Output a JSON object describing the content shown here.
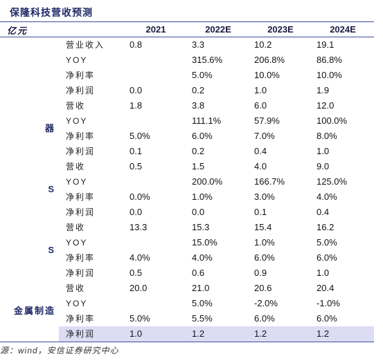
{
  "title": "保隆科技营收预测",
  "source": "源：wind，安信证券研究中心",
  "table": {
    "header": {
      "unit": "亿元",
      "years": [
        "2021",
        "2022E",
        "2023E",
        "2024E"
      ]
    },
    "groups": [
      {
        "label": null,
        "rows": [
          {
            "metric": "营业收入",
            "values": [
              "0.8",
              "3.3",
              "10.2",
              "19.1"
            ]
          },
          {
            "metric": "YOY",
            "values": [
              null,
              "315.6%",
              "206.8%",
              "86.8%"
            ]
          },
          {
            "metric": "净利率",
            "values": [
              null,
              "5.0%",
              "10.0%",
              "10.0%"
            ]
          },
          {
            "metric": "净利润",
            "values": [
              "0.0",
              "0.2",
              "1.0",
              "1.9"
            ]
          }
        ]
      },
      {
        "label": "器",
        "rows": [
          {
            "metric": "营收",
            "values": [
              "1.8",
              "3.8",
              "6.0",
              "12.0"
            ]
          },
          {
            "metric": "YOY",
            "values": [
              null,
              "111.1%",
              "57.9%",
              "100.0%"
            ]
          },
          {
            "metric": "净利率",
            "values": [
              "5.0%",
              "6.0%",
              "7.0%",
              "8.0%"
            ]
          },
          {
            "metric": "净利润",
            "values": [
              "0.1",
              "0.2",
              "0.4",
              "1.0"
            ]
          }
        ]
      },
      {
        "label": "S",
        "rows": [
          {
            "metric": "营收",
            "values": [
              "0.5",
              "1.5",
              "4.0",
              "9.0"
            ]
          },
          {
            "metric": "YOY",
            "values": [
              null,
              "200.0%",
              "166.7%",
              "125.0%"
            ]
          },
          {
            "metric": "净利率",
            "values": [
              "0.0%",
              "1.0%",
              "3.0%",
              "4.0%"
            ]
          },
          {
            "metric": "净利润",
            "values": [
              "0.0",
              "0.0",
              "0.1",
              "0.4"
            ]
          }
        ]
      },
      {
        "label": "S",
        "rows": [
          {
            "metric": "营收",
            "values": [
              "13.3",
              "15.3",
              "15.4",
              "16.2"
            ]
          },
          {
            "metric": "YOY",
            "values": [
              null,
              "15.0%",
              "1.0%",
              "5.0%"
            ]
          },
          {
            "metric": "净利率",
            "values": [
              "4.0%",
              "4.0%",
              "6.0%",
              "6.0%"
            ]
          },
          {
            "metric": "净利润",
            "values": [
              "0.5",
              "0.6",
              "0.9",
              "1.0"
            ]
          }
        ]
      },
      {
        "label": "金属制造",
        "rows": [
          {
            "metric": "营收",
            "values": [
              "20.0",
              "21.0",
              "20.6",
              "20.4"
            ]
          },
          {
            "metric": "YOY",
            "values": [
              null,
              "5.0%",
              "-2.0%",
              "-1.0%"
            ]
          },
          {
            "metric": "净利率",
            "values": [
              "5.0%",
              "5.5%",
              "6.0%",
              "6.0%"
            ]
          },
          {
            "metric": "净利润",
            "values": [
              "1.0",
              "1.2",
              "1.2",
              "1.2"
            ]
          }
        ]
      }
    ]
  }
}
